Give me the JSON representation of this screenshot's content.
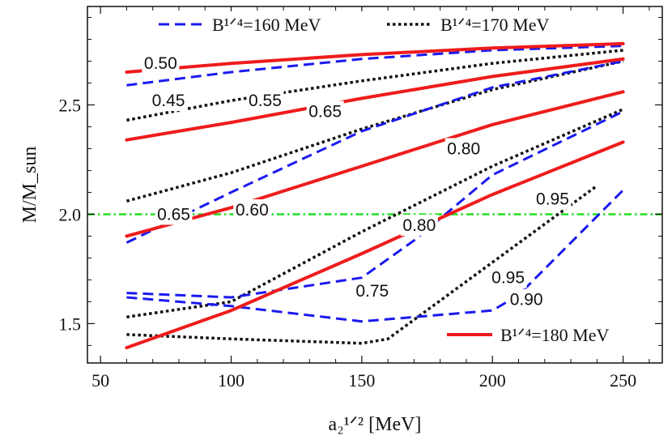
{
  "chart_data": {
    "type": "line",
    "title": "",
    "xlabel": "a₂¹ᐟ² [MeV]",
    "ylabel": "M/M_sun",
    "xlim": [
      45,
      265
    ],
    "ylim": [
      1.32,
      2.95
    ],
    "x_ticks": [
      50,
      100,
      150,
      200,
      250
    ],
    "y_ticks": [
      1.5,
      2.0,
      2.5
    ],
    "x_tick_labels": [
      "50",
      "100",
      "150",
      "200",
      "250"
    ],
    "y_tick_labels": [
      "1.5",
      "2.0",
      "2.5"
    ],
    "grid": false,
    "reference_line": {
      "y": 2.0,
      "color": "#22dd22",
      "style": "dash-dot"
    },
    "legend": [
      {
        "text": "B¹ᐟ⁴=160 MeV",
        "color": "#1a1aee",
        "style": "dashed",
        "placement": "top-left"
      },
      {
        "text": "B¹ᐟ⁴=170 MeV",
        "color": "#111111",
        "style": "dotted",
        "placement": "top-right"
      },
      {
        "text": "B¹ᐟ⁴=180 MeV",
        "color": "#ee1c1c",
        "style": "solid",
        "placement": "bottom-right"
      }
    ],
    "series": [
      {
        "group": "160",
        "color": "#1a1aee",
        "style": "dashed",
        "x": [
          60,
          100,
          150,
          200,
          250
        ],
        "y": [
          2.59,
          2.65,
          2.71,
          2.75,
          2.77
        ]
      },
      {
        "group": "160",
        "color": "#1a1aee",
        "style": "dashed",
        "x": [
          60,
          100,
          150,
          200,
          250
        ],
        "y": [
          1.87,
          2.1,
          2.38,
          2.58,
          2.7
        ]
      },
      {
        "group": "160",
        "color": "#1a1aee",
        "style": "dashed",
        "x": [
          60,
          100,
          150,
          170,
          200,
          250
        ],
        "y": [
          1.64,
          1.62,
          1.71,
          1.88,
          2.18,
          2.47
        ]
      },
      {
        "group": "160",
        "color": "#1a1aee",
        "style": "dashed",
        "x": [
          60,
          100,
          150,
          200,
          210,
          250
        ],
        "y": [
          1.62,
          1.58,
          1.51,
          1.56,
          1.63,
          2.11
        ]
      },
      {
        "group": "170",
        "color": "#111111",
        "style": "dotted",
        "x": [
          60,
          100,
          150,
          200,
          250
        ],
        "y": [
          2.43,
          2.52,
          2.61,
          2.69,
          2.75
        ]
      },
      {
        "group": "170",
        "color": "#111111",
        "style": "dotted",
        "x": [
          60,
          100,
          150,
          200,
          250
        ],
        "y": [
          2.06,
          2.19,
          2.39,
          2.57,
          2.7
        ]
      },
      {
        "group": "170",
        "color": "#111111",
        "style": "dotted",
        "x": [
          60,
          100,
          150,
          200,
          250
        ],
        "y": [
          1.53,
          1.6,
          1.92,
          2.22,
          2.48
        ]
      },
      {
        "group": "170",
        "color": "#111111",
        "style": "dotted",
        "x": [
          60,
          100,
          150,
          160,
          200,
          240
        ],
        "y": [
          1.45,
          1.43,
          1.41,
          1.43,
          1.78,
          2.13
        ]
      },
      {
        "group": "180",
        "color": "#ee1c1c",
        "style": "solid",
        "x": [
          60,
          100,
          150,
          200,
          250
        ],
        "y": [
          2.65,
          2.69,
          2.73,
          2.76,
          2.78
        ]
      },
      {
        "group": "180",
        "color": "#ee1c1c",
        "style": "solid",
        "x": [
          60,
          100,
          150,
          200,
          250
        ],
        "y": [
          2.34,
          2.42,
          2.53,
          2.63,
          2.71
        ]
      },
      {
        "group": "180",
        "color": "#ee1c1c",
        "style": "solid",
        "x": [
          60,
          100,
          150,
          200,
          250
        ],
        "y": [
          1.9,
          2.03,
          2.22,
          2.41,
          2.56
        ]
      },
      {
        "group": "180",
        "color": "#ee1c1c",
        "style": "solid",
        "x": [
          60,
          100,
          150,
          200,
          250
        ],
        "y": [
          1.39,
          1.56,
          1.82,
          2.09,
          2.33
        ]
      }
    ],
    "annotations": [
      {
        "text": "0.50",
        "x": 73,
        "y": 2.69
      },
      {
        "text": "0.45",
        "x": 76,
        "y": 2.52
      },
      {
        "text": "0.55",
        "x": 113,
        "y": 2.52
      },
      {
        "text": "0.65",
        "x": 136,
        "y": 2.47
      },
      {
        "text": "0.80",
        "x": 189,
        "y": 2.3
      },
      {
        "text": "0.95",
        "x": 223,
        "y": 2.07
      },
      {
        "text": "0.65",
        "x": 78,
        "y": 2.0
      },
      {
        "text": "0.60",
        "x": 108,
        "y": 2.02
      },
      {
        "text": "0.80",
        "x": 172,
        "y": 1.95
      },
      {
        "text": "0.95",
        "x": 206,
        "y": 1.71
      },
      {
        "text": "0.75",
        "x": 154,
        "y": 1.65
      },
      {
        "text": "0.90",
        "x": 213,
        "y": 1.61
      }
    ]
  }
}
